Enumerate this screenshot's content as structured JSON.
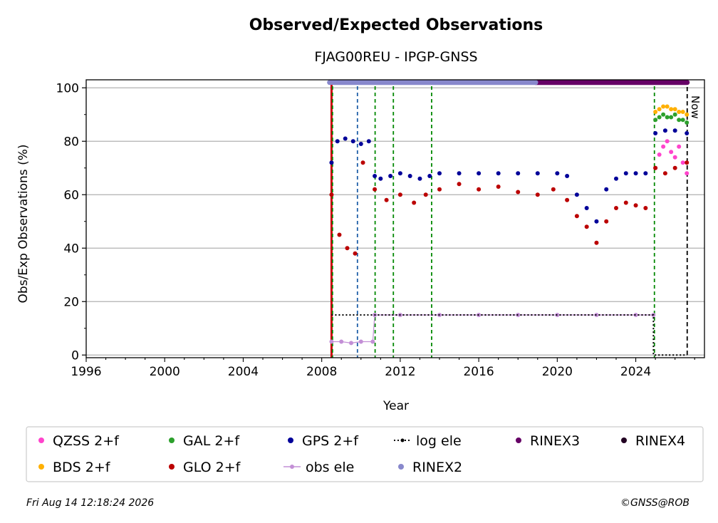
{
  "chart_data": {
    "type": "scatter",
    "title": "Observed/Expected Observations",
    "subtitle": "FJAG00REU - IPGP-GNSS",
    "xlabel": "Year",
    "ylabel": "Obs/Exp Observations (%)",
    "xlim": [
      1996,
      2027.5
    ],
    "ylim": [
      -1,
      103
    ],
    "x_ticks": [
      1996,
      2000,
      2004,
      2008,
      2012,
      2016,
      2020,
      2024
    ],
    "x_tick_labels": [
      "1996",
      "2000",
      "2004",
      "2008",
      "2012",
      "2016",
      "2020",
      "2024"
    ],
    "y_ticks": [
      0,
      20,
      40,
      60,
      80,
      100
    ],
    "y_tick_labels": [
      "0",
      "20",
      "40",
      "60",
      "80",
      "100"
    ],
    "grid": "horizontal",
    "now_label": "Now",
    "now_x": 2026.62,
    "legend_position": "below",
    "series": [
      {
        "name": "QZSS 2+f",
        "color": "#ff44cc",
        "marker": "dot",
        "x": [
          2025.0,
          2025.2,
          2025.4,
          2025.6,
          2025.8,
          2026.0,
          2026.2,
          2026.4,
          2026.6
        ],
        "y": [
          70,
          75,
          78,
          80,
          76,
          74,
          78,
          72,
          68
        ]
      },
      {
        "name": "BDS 2+f",
        "color": "#ffb000",
        "marker": "dot",
        "x": [
          2025.0,
          2025.2,
          2025.4,
          2025.6,
          2025.8,
          2026.0,
          2026.2,
          2026.4,
          2026.6
        ],
        "y": [
          91,
          92,
          93,
          93,
          92,
          92,
          91,
          91,
          90
        ]
      },
      {
        "name": "GLO 2+f",
        "color": "#bb0000",
        "marker": "dot",
        "x": [
          2008.5,
          2008.9,
          2009.3,
          2009.7,
          2010.1,
          2010.7,
          2011.3,
          2012.0,
          2012.7,
          2013.3,
          2014.0,
          2015.0,
          2016.0,
          2017.0,
          2018.0,
          2019.0,
          2019.8,
          2020.5,
          2021.0,
          2021.5,
          2022.0,
          2022.5,
          2023.0,
          2023.5,
          2024.0,
          2024.5,
          2025.0,
          2025.5,
          2026.0,
          2026.6
        ],
        "y": [
          60,
          45,
          40,
          38,
          72,
          62,
          58,
          60,
          57,
          60,
          62,
          64,
          62,
          63,
          61,
          60,
          62,
          58,
          52,
          48,
          42,
          50,
          55,
          57,
          56,
          55,
          70,
          68,
          70,
          72
        ]
      },
      {
        "name": "GAL 2+f",
        "color": "#2ca02c",
        "marker": "dot",
        "x": [
          2025.0,
          2025.2,
          2025.4,
          2025.6,
          2025.8,
          2026.0,
          2026.2,
          2026.4,
          2026.6
        ],
        "y": [
          88,
          89,
          90,
          89,
          89,
          90,
          88,
          88,
          87
        ]
      },
      {
        "name": "GPS 2+f",
        "color": "#000099",
        "marker": "dot",
        "x": [
          2008.5,
          2008.8,
          2009.2,
          2009.6,
          2010.0,
          2010.4,
          2010.7,
          2011.0,
          2011.5,
          2012.0,
          2012.5,
          2013.0,
          2013.5,
          2014.0,
          2015.0,
          2016.0,
          2017.0,
          2018.0,
          2019.0,
          2020.0,
          2020.5,
          2021.0,
          2021.5,
          2022.0,
          2022.5,
          2023.0,
          2023.5,
          2024.0,
          2024.5,
          2025.0,
          2025.5,
          2026.0,
          2026.6
        ],
        "y": [
          72,
          80,
          81,
          80,
          79,
          80,
          67,
          66,
          67,
          68,
          67,
          66,
          67,
          68,
          68,
          68,
          68,
          68,
          68,
          68,
          67,
          60,
          55,
          50,
          62,
          66,
          68,
          68,
          68,
          83,
          84,
          84,
          83
        ]
      },
      {
        "name": "obs ele",
        "color": "#c38fd6",
        "marker": "line-dot",
        "x": [
          2008.5,
          2009.0,
          2009.5,
          2010.0,
          2010.6,
          2010.7,
          2012.0,
          2014.0,
          2016.0,
          2018.0,
          2020.0,
          2022.0,
          2024.0,
          2024.9
        ],
        "y": [
          5,
          5,
          4.5,
          5,
          5,
          15,
          15,
          15,
          15,
          15,
          15,
          15,
          15,
          15
        ]
      },
      {
        "name": "log ele",
        "color": "#000000",
        "marker": "dotted-line",
        "x": [
          2008.5,
          2024.9,
          2024.9,
          2026.62
        ],
        "y": [
          15,
          15,
          0,
          0
        ]
      },
      {
        "name": "RINEX3",
        "color": "#660066",
        "marker": "bar",
        "x": [
          2018.9,
          2026.62
        ],
        "y": [
          102,
          102
        ]
      },
      {
        "name": "RINEX2",
        "color": "#8888cc",
        "marker": "bar",
        "x": [
          2008.4,
          2018.9
        ],
        "y": [
          102,
          102
        ]
      },
      {
        "name": "RINEX4",
        "color": "#220022",
        "marker": "bar",
        "x": [],
        "y": []
      }
    ],
    "event_lines": [
      {
        "x": 2008.5,
        "color": "#cc0000",
        "style": "solid"
      },
      {
        "x": 2008.55,
        "color": "#008800",
        "style": "dashed"
      },
      {
        "x": 2009.82,
        "color": "#1f5fa8",
        "style": "dashed"
      },
      {
        "x": 2010.72,
        "color": "#008800",
        "style": "dashed"
      },
      {
        "x": 2011.65,
        "color": "#008800",
        "style": "dashed"
      },
      {
        "x": 2013.6,
        "color": "#008800",
        "style": "dashed"
      },
      {
        "x": 2024.95,
        "color": "#008800",
        "style": "dashed"
      }
    ]
  },
  "legend": [
    {
      "label": "QZSS 2+f",
      "color": "#ff44cc",
      "kind": "dot"
    },
    {
      "label": "GAL 2+f",
      "color": "#2ca02c",
      "kind": "dot"
    },
    {
      "label": "GPS 2+f",
      "color": "#000099",
      "kind": "dot"
    },
    {
      "label": "log ele",
      "color": "#000000",
      "kind": "dotted"
    },
    {
      "label": "RINEX3",
      "color": "#660066",
      "kind": "dot"
    },
    {
      "label": "RINEX4",
      "color": "#220022",
      "kind": "dot"
    },
    {
      "label": "BDS 2+f",
      "color": "#ffb000",
      "kind": "dot"
    },
    {
      "label": "GLO 2+f",
      "color": "#bb0000",
      "kind": "dot"
    },
    {
      "label": "obs ele",
      "color": "#c38fd6",
      "kind": "line-dot"
    },
    {
      "label": "RINEX2",
      "color": "#8888cc",
      "kind": "dot"
    }
  ],
  "footer": {
    "timestamp": "Fri Aug 14 12:18:24 2026",
    "credit": "©GNSS@ROB"
  }
}
